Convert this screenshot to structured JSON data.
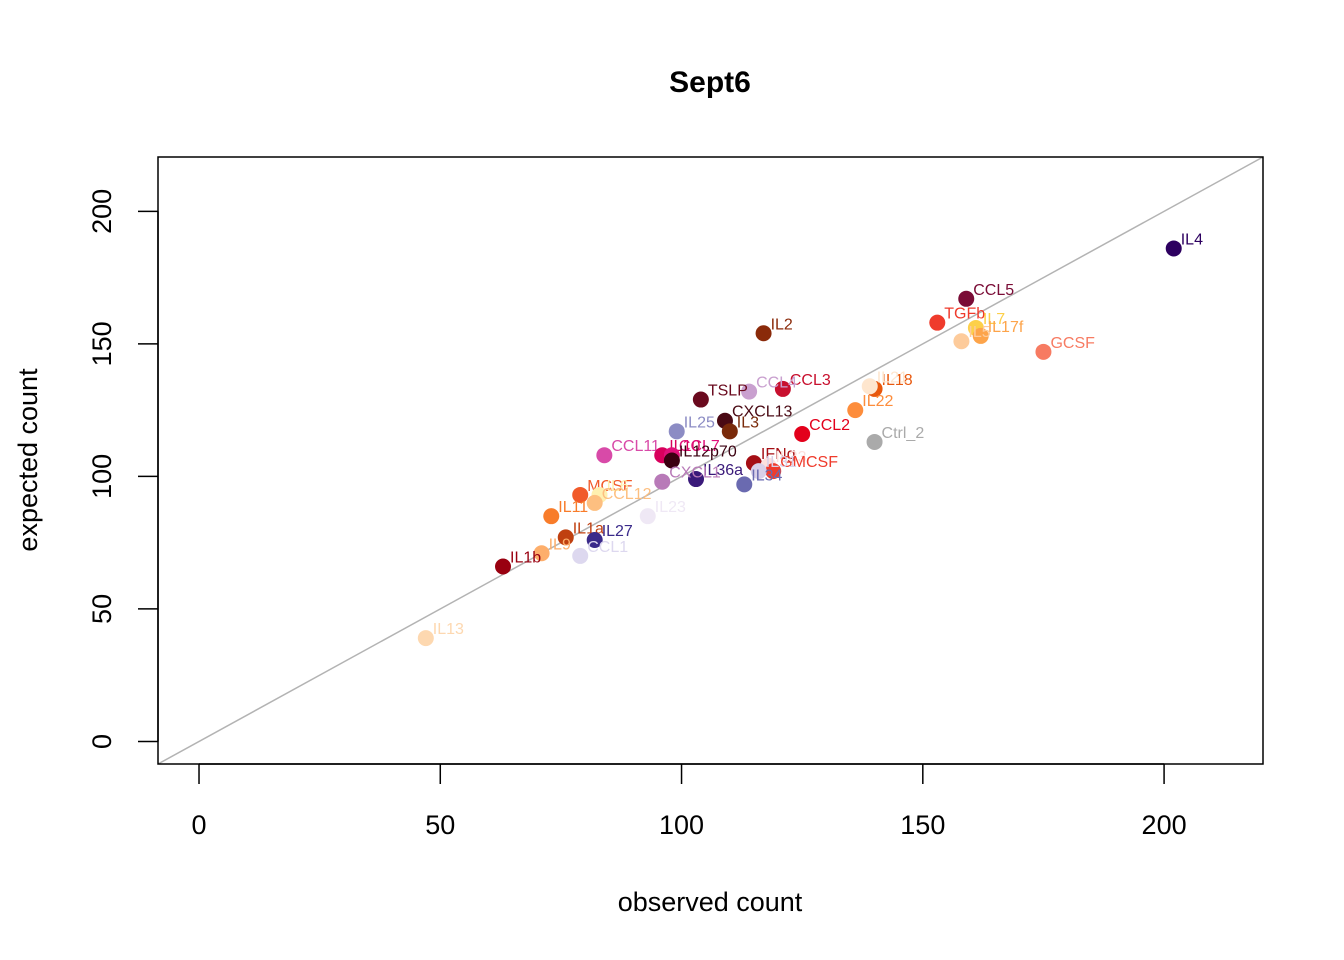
{
  "chart_data": {
    "type": "scatter",
    "title": "Sept6",
    "xlabel": "observed count",
    "ylabel": "expected count",
    "xlim": [
      -8.5,
      220.5
    ],
    "ylim": [
      -8.5,
      220.5
    ],
    "x_ticks": [
      0,
      50,
      100,
      150,
      200
    ],
    "y_ticks": [
      0,
      50,
      100,
      150,
      200
    ],
    "x_tick_labels": [
      "0",
      "50",
      "100",
      "150",
      "200"
    ],
    "y_tick_labels": [
      "0",
      "50",
      "100",
      "150",
      "200"
    ],
    "reference_line": "y = x",
    "reference_line_color": "#b3b3b3",
    "grid": false,
    "legend": "none",
    "points": [
      {
        "label": "IL4",
        "x": 202,
        "y": 186,
        "color": "#2d0060"
      },
      {
        "label": "CCL5",
        "x": 159,
        "y": 167,
        "color": "#7a0c36"
      },
      {
        "label": "TGFb",
        "x": 153,
        "y": 158,
        "color": "#ef3b2c"
      },
      {
        "label": "IL7",
        "x": 161,
        "y": 156,
        "color": "#fdd049"
      },
      {
        "label": "IL17f",
        "x": 162,
        "y": 153,
        "color": "#fda44a"
      },
      {
        "label": "IL5",
        "x": 158,
        "y": 151,
        "color": "#fdcb9b"
      },
      {
        "label": "GCSF",
        "x": 175,
        "y": 147,
        "color": "#f77b62"
      },
      {
        "label": "IL2",
        "x": 117,
        "y": 154,
        "color": "#8a2a0a"
      },
      {
        "label": "IL18",
        "x": 140,
        "y": 133,
        "color": "#e8580d"
      },
      {
        "label": "IL21",
        "x": 139,
        "y": 134,
        "color": "#fee6ce"
      },
      {
        "label": "IL22",
        "x": 136,
        "y": 125,
        "color": "#fd8d3c"
      },
      {
        "label": "CCL3",
        "x": 121,
        "y": 133,
        "color": "#c8102e"
      },
      {
        "label": "CCL4",
        "x": 114,
        "y": 132,
        "color": "#c9a0cf"
      },
      {
        "label": "TSLP",
        "x": 104,
        "y": 129,
        "color": "#6a0a1e"
      },
      {
        "label": "CXCL13",
        "x": 109,
        "y": 121,
        "color": "#4a0a14"
      },
      {
        "label": "IL3",
        "x": 110,
        "y": 117,
        "color": "#7a2a0a"
      },
      {
        "label": "IL25",
        "x": 99,
        "y": 117,
        "color": "#8c8cc4"
      },
      {
        "label": "Ctrl_2",
        "x": 140,
        "y": 113,
        "color": "#aaaaaa"
      },
      {
        "label": "CCL2",
        "x": 125,
        "y": 116,
        "color": "#e3001b"
      },
      {
        "label": "CCL11",
        "x": 84,
        "y": 108,
        "color": "#d84aa8"
      },
      {
        "label": "IL10",
        "x": 96,
        "y": 108,
        "color": "#d8005c"
      },
      {
        "label": "CCL7",
        "x": 98,
        "y": 108,
        "color": "#e0107a"
      },
      {
        "label": "IL12p70",
        "x": 98,
        "y": 106,
        "color": "#3a0010"
      },
      {
        "label": "IFNg",
        "x": 115,
        "y": 105,
        "color": "#a50f15"
      },
      {
        "label": "IL33",
        "x": 118,
        "y": 104,
        "color": "#fde0dd"
      },
      {
        "label": "GMCSF",
        "x": 119,
        "y": 102,
        "color": "#ef3b2c"
      },
      {
        "label": "IL31",
        "x": 116,
        "y": 102,
        "color": "#d8d0e8"
      },
      {
        "label": "IL34",
        "x": 113,
        "y": 97,
        "color": "#6a6ab0"
      },
      {
        "label": "IL36a",
        "x": 103,
        "y": 99,
        "color": "#3a1a7a"
      },
      {
        "label": "CXCL1",
        "x": 96,
        "y": 98,
        "color": "#b87ab8"
      },
      {
        "label": "MCSF",
        "x": 79,
        "y": 93,
        "color": "#f15a2a"
      },
      {
        "label": "IL6",
        "x": 83,
        "y": 93,
        "color": "#fef0b0"
      },
      {
        "label": "CCL12",
        "x": 82,
        "y": 90,
        "color": "#fdbf80"
      },
      {
        "label": "IL11",
        "x": 73,
        "y": 85,
        "color": "#f87c2a"
      },
      {
        "label": "IL23",
        "x": 93,
        "y": 85,
        "color": "#efe8f5"
      },
      {
        "label": "IL1a",
        "x": 76,
        "y": 77,
        "color": "#c04010"
      },
      {
        "label": "IL27",
        "x": 82,
        "y": 76,
        "color": "#3a2a8a"
      },
      {
        "label": "IL9",
        "x": 71,
        "y": 71,
        "color": "#fdae6b"
      },
      {
        "label": "CCL1",
        "x": 79,
        "y": 70,
        "color": "#ddd8ef"
      },
      {
        "label": "IL1b",
        "x": 63,
        "y": 66,
        "color": "#990010"
      },
      {
        "label": "IL13",
        "x": 47,
        "y": 39,
        "color": "#fdd8b0"
      }
    ]
  }
}
